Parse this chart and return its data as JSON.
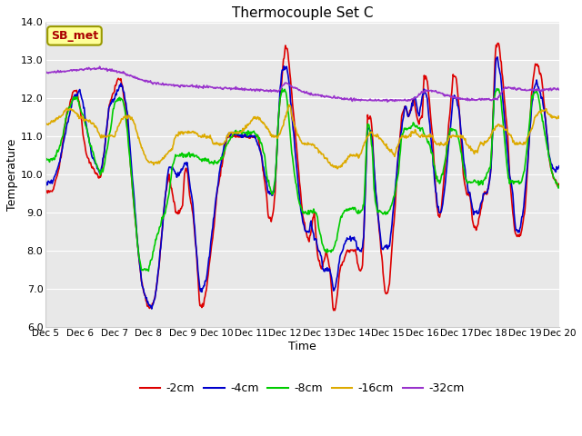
{
  "title": "Thermocouple Set C",
  "xlabel": "Time",
  "ylabel": "Temperature",
  "ylim": [
    6.0,
    14.0
  ],
  "yticks": [
    6.0,
    7.0,
    8.0,
    9.0,
    10.0,
    11.0,
    12.0,
    13.0,
    14.0
  ],
  "xtick_labels": [
    "Dec 5",
    "Dec 6",
    "Dec 7",
    "Dec 8",
    "Dec 9",
    "Dec 10",
    "Dec 11",
    "Dec 12",
    "Dec 13",
    "Dec 14",
    "Dec 15",
    "Dec 16",
    "Dec 17",
    "Dec 18",
    "Dec 19",
    "Dec 20"
  ],
  "legend_labels": [
    "-2cm",
    "-4cm",
    "-8cm",
    "-16cm",
    "-32cm"
  ],
  "legend_colors": [
    "#dd0000",
    "#0000cc",
    "#00cc00",
    "#ddaa00",
    "#9933cc"
  ],
  "bg_color": "#e8e8e8",
  "fig_bg": "#ffffff",
  "annotation_text": "SB_met",
  "annotation_color": "#aa0000",
  "annotation_bg": "#ffff99",
  "annotation_border": "#999900",
  "grid_color": "#ffffff",
  "title_fontsize": 11,
  "tick_fontsize": 8,
  "label_fontsize": 9,
  "legend_fontsize": 9
}
